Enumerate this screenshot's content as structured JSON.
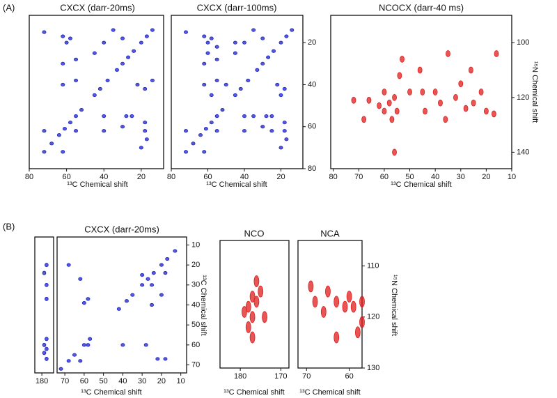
{
  "panel_labels": [
    "(A)",
    "(B)"
  ],
  "chart_data": [
    {
      "type": "scatter",
      "title": "CXCX (darr-20ms)",
      "xlabel": "¹³C Chemical shift",
      "color": "#1c22c8",
      "xlim": [
        80,
        8
      ],
      "ylim": [
        80,
        7
      ],
      "xticks": [
        80,
        60,
        40,
        20
      ],
      "x": [
        72,
        68,
        64,
        61,
        58,
        55,
        52,
        45,
        42,
        38,
        33,
        30,
        27,
        24,
        20,
        17,
        14,
        72,
        72,
        62,
        62,
        60,
        58,
        40,
        30,
        55,
        55,
        62,
        18,
        18,
        28,
        40,
        62,
        20,
        17,
        45,
        35,
        18,
        30,
        25,
        22,
        55,
        40,
        14
      ],
      "values": [
        72,
        68,
        64,
        61,
        58,
        55,
        52,
        45,
        42,
        38,
        33,
        30,
        27,
        24,
        20,
        17,
        14,
        62,
        15,
        72,
        17,
        20,
        18,
        20,
        18,
        28,
        38,
        40,
        62,
        58,
        55,
        55,
        30,
        70,
        66,
        25,
        14,
        42,
        60,
        55,
        40,
        62,
        62,
        38
      ]
    },
    {
      "type": "scatter",
      "title": "CXCX (darr-100ms)",
      "xlabel": "¹³C Chemical shift",
      "color": "#1c22c8",
      "xlim": [
        80,
        8
      ],
      "ylim": [
        80,
        7
      ],
      "xticks": [
        80,
        60,
        40,
        20
      ],
      "yticks": [
        20,
        40,
        60,
        80
      ],
      "x": [
        72,
        68,
        64,
        61,
        58,
        55,
        52,
        45,
        42,
        38,
        33,
        30,
        27,
        24,
        20,
        17,
        14,
        72,
        72,
        62,
        62,
        60,
        58,
        40,
        30,
        55,
        55,
        62,
        18,
        18,
        28,
        40,
        62,
        20,
        17,
        45,
        35,
        18,
        30,
        25,
        22,
        55,
        40,
        60,
        55,
        45,
        25,
        20,
        35,
        58,
        50
      ],
      "values": [
        72,
        68,
        64,
        61,
        58,
        55,
        52,
        45,
        42,
        38,
        33,
        30,
        27,
        24,
        20,
        17,
        14,
        62,
        15,
        72,
        17,
        20,
        18,
        20,
        18,
        28,
        38,
        40,
        62,
        58,
        55,
        55,
        30,
        70,
        66,
        25,
        14,
        42,
        60,
        55,
        40,
        62,
        62,
        25,
        22,
        20,
        62,
        45,
        55,
        45,
        40
      ]
    },
    {
      "type": "scatter",
      "title": "NCOCX (darr-40 ms)",
      "xlabel": "¹³C Chemical shift",
      "ylabel": "¹⁵N Chemical shift",
      "color": "#e01c1c",
      "xlim": [
        81,
        10
      ],
      "ylim": [
        146,
        90
      ],
      "xticks": [
        80,
        70,
        60,
        50,
        40,
        30,
        20,
        10
      ],
      "yticks": [
        100,
        120,
        140
      ],
      "x": [
        60,
        58,
        56,
        55,
        57,
        54,
        53,
        50,
        60,
        62,
        66,
        72,
        68,
        46,
        44,
        40,
        38,
        35,
        32,
        30,
        28,
        25,
        22,
        20,
        16,
        17,
        36,
        26,
        56,
        45
      ],
      "values": [
        118,
        122,
        120,
        125,
        128,
        112,
        106,
        118,
        125,
        123,
        121,
        121,
        128,
        110,
        125,
        118,
        122,
        104,
        120,
        115,
        124,
        122,
        118,
        125,
        104,
        126,
        128,
        110,
        140,
        118
      ]
    },
    {
      "type": "scatter",
      "color": "#1c22c8",
      "xlim": [
        183,
        175
      ],
      "ylim": [
        74,
        6
      ],
      "xticks": [
        180
      ],
      "x": [
        178,
        179,
        178,
        178,
        179,
        178,
        179,
        178,
        178
      ],
      "values": [
        20,
        24,
        30,
        37,
        60,
        62,
        64,
        67,
        57
      ]
    },
    {
      "type": "scatter",
      "title": "CXCX (darr-20ms)",
      "xlabel": "¹³C Chemical shift",
      "ylabel": "¹³C Chemical shift",
      "color": "#1c22c8",
      "xlim": [
        74,
        7
      ],
      "ylim": [
        74,
        6
      ],
      "xticks": [
        70,
        60,
        50,
        40,
        30,
        20,
        10
      ],
      "yticks": [
        10,
        20,
        30,
        40,
        50,
        60,
        70
      ],
      "x": [
        72,
        68,
        65,
        60,
        57,
        42,
        38,
        35,
        30,
        27,
        24,
        20,
        17,
        13,
        68,
        62,
        58,
        58,
        40,
        28,
        22,
        18,
        25,
        30,
        18,
        20,
        25,
        62,
        60
      ],
      "values": [
        72,
        68,
        65,
        60,
        57,
        42,
        38,
        35,
        30,
        27,
        24,
        20,
        17,
        13,
        20,
        27,
        37,
        60,
        60,
        60,
        67,
        67,
        30,
        25,
        24,
        35,
        40,
        68,
        39
      ]
    },
    {
      "type": "scatter",
      "title": "NCO",
      "xlabel": "¹³C Chemical shift",
      "color": "#e01c1c",
      "xlim": [
        185,
        168
      ],
      "ylim": [
        130,
        105
      ],
      "xticks": [
        180,
        170
      ],
      "x": [
        178,
        176,
        175,
        177,
        174,
        178,
        177,
        176,
        179,
        177
      ],
      "values": [
        118,
        117,
        115,
        120,
        120,
        122,
        124,
        113,
        119,
        116
      ]
    },
    {
      "type": "scatter",
      "title": "NCA",
      "xlabel": "¹³C Chemical shift",
      "ylabel": "¹⁵N Chemical shift",
      "color": "#e01c1c",
      "xlim": [
        72,
        57
      ],
      "ylim": [
        130,
        105
      ],
      "xticks": [
        70,
        60
      ],
      "yticks": [
        110,
        120,
        130
      ],
      "x": [
        68,
        65,
        63,
        61,
        59,
        57,
        57,
        58,
        63,
        66,
        60,
        69
      ],
      "values": [
        117,
        115,
        117,
        118,
        118,
        117,
        121,
        123,
        124,
        119,
        116,
        114
      ]
    }
  ]
}
